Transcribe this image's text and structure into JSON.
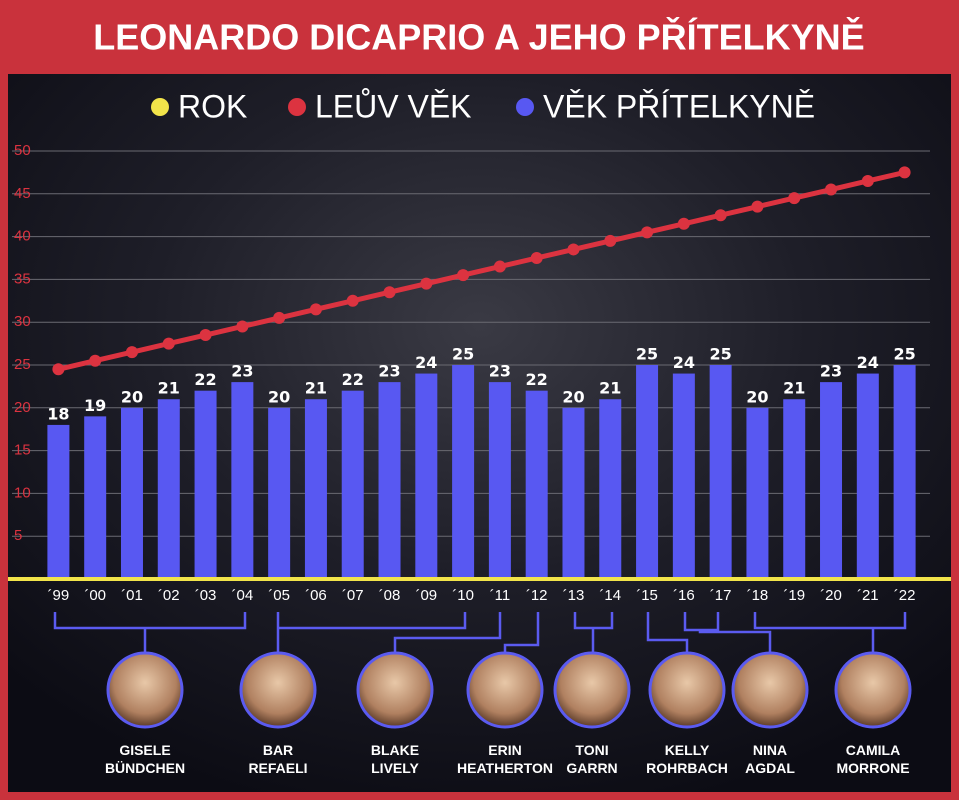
{
  "chart_data": {
    "type": "bar",
    "title": "LEONARDO DICAPRIO A JEHO PŘÍTELKYNĚ",
    "year_axis": {
      "name": "ROK",
      "color": "#f2e44a"
    },
    "categories": [
      "´99",
      "´00",
      "´01",
      "´02",
      "´03",
      "´04",
      "´05",
      "´06",
      "´07",
      "´08",
      "´09",
      "´10",
      "´11",
      "´12",
      "´13",
      "´14",
      "´15",
      "´16",
      "´17",
      "´18",
      "´19",
      "´20",
      "´21",
      "´22"
    ],
    "series": [
      {
        "name": "VĚK PŘÍTELKYNĚ",
        "color": "#5858f2",
        "values": [
          18,
          19,
          20,
          21,
          22,
          23,
          20,
          21,
          22,
          23,
          24,
          25,
          23,
          22,
          20,
          21,
          25,
          24,
          25,
          20,
          21,
          23,
          24,
          25
        ]
      },
      {
        "name": "LEŮV VĚK",
        "color": "#dc3340",
        "type": "line",
        "values": [
          24.5,
          25.5,
          26.5,
          27.5,
          28.5,
          29.5,
          30.5,
          31.5,
          32.5,
          33.5,
          34.5,
          35.5,
          36.5,
          37.5,
          38.5,
          39.5,
          40.5,
          41.5,
          42.5,
          43.5,
          44.5,
          45.5,
          46.5,
          47.5
        ]
      }
    ],
    "ylim": [
      0,
      50
    ],
    "yticks": [
      5,
      10,
      15,
      20,
      25,
      30,
      35,
      40,
      45,
      50
    ],
    "grid": true
  },
  "girlfriends": [
    "GISELE BÜNDCHEN",
    "BAR REFAELI",
    "BLAKE LIVELY",
    "ERIN HEATHERTON",
    "TONI GARRN",
    "KELLY ROHRBACH",
    "NINA AGDAL",
    "CAMILA MORRONE"
  ]
}
